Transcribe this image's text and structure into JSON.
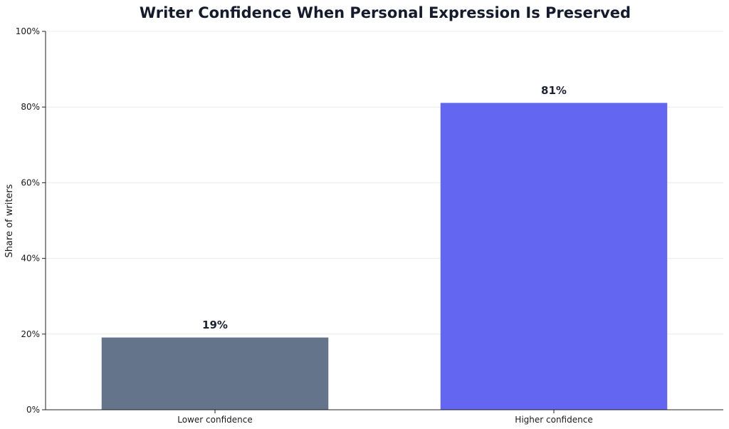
{
  "chart_data": {
    "type": "bar",
    "title": "Writer Confidence When Personal Expression Is Preserved",
    "xlabel": "",
    "ylabel": "Share of writers",
    "categories": [
      "Lower confidence",
      "Higher confidence"
    ],
    "values": [
      19,
      81
    ],
    "data_labels": [
      "19%",
      "81%"
    ],
    "ylim": [
      0,
      100
    ],
    "yticks": [
      0,
      20,
      40,
      60,
      80,
      100
    ],
    "ytick_labels": [
      "0%",
      "20%",
      "40%",
      "60%",
      "80%",
      "100%"
    ],
    "bar_colors": [
      "#64748b",
      "#6366f1"
    ],
    "grid": "horizontal",
    "legend": "none"
  }
}
